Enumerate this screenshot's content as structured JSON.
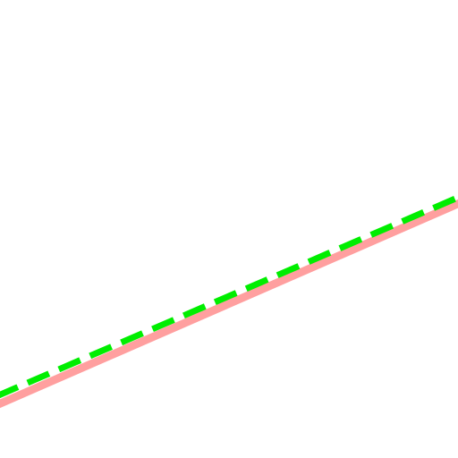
{
  "canvas": {
    "background_color": "#ffffff"
  },
  "lines": [
    {
      "name": "pink-solid-line",
      "color": "#ff9f9f",
      "style": "solid"
    },
    {
      "name": "green-dashed-line",
      "color": "#00ee00",
      "style": "dashed"
    }
  ]
}
